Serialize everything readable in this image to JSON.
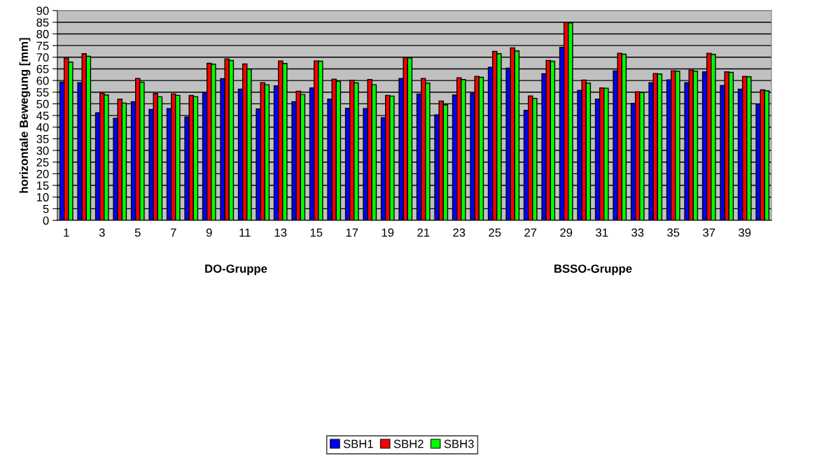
{
  "chart_data": {
    "type": "bar",
    "ylabel": "horizontale Bewegung [mm]",
    "categories": [
      "1",
      null,
      "3",
      null,
      "5",
      null,
      "7",
      null,
      "9",
      null,
      "11",
      null,
      "13",
      null,
      "15",
      null,
      "17",
      null,
      "19",
      null,
      "21",
      null,
      "23",
      null,
      "25",
      null,
      "27",
      null,
      "29",
      null,
      "31",
      null,
      "33",
      null,
      "35",
      null,
      "37",
      null,
      "39",
      null
    ],
    "series": [
      {
        "name": "SBH1",
        "color": "#0000ff",
        "values": [
          59.4,
          59.1,
          46.2,
          43.8,
          50.9,
          47.6,
          48.0,
          44.4,
          55.0,
          60.8,
          56.3,
          47.8,
          57.7,
          50.9,
          56.8,
          52.0,
          48.1,
          48.0,
          44.1,
          60.9,
          54.2,
          45.3,
          53.8,
          54.5,
          65.7,
          65.3,
          47.2,
          62.9,
          74.2,
          55.8,
          52.0,
          64.2,
          50.2,
          59.1,
          60.3,
          59.1,
          63.7,
          57.9,
          56.3,
          49.9
        ]
      },
      {
        "name": "SBH2",
        "color": "#ff0000",
        "values": [
          69.6,
          71.5,
          54.5,
          52.0,
          60.9,
          54.4,
          54.3,
          53.6,
          67.4,
          69.3,
          67.1,
          59.1,
          68.4,
          55.4,
          68.4,
          60.6,
          60.1,
          60.4,
          53.6,
          69.9,
          60.9,
          51.2,
          61.2,
          61.8,
          72.5,
          74.0,
          53.4,
          68.6,
          85.0,
          60.2,
          56.8,
          71.7,
          55.2,
          63.0,
          64.2,
          64.5,
          71.7,
          63.7,
          61.8,
          56.0
        ]
      },
      {
        "name": "SBH3",
        "color": "#00ff00",
        "values": [
          67.9,
          70.4,
          53.8,
          50.3,
          59.3,
          53.0,
          53.6,
          53.1,
          67.0,
          68.6,
          64.9,
          58.2,
          67.3,
          54.0,
          68.3,
          59.7,
          59.0,
          58.2,
          53.3,
          69.7,
          58.9,
          49.6,
          60.4,
          61.4,
          71.5,
          72.7,
          52.3,
          68.3,
          84.7,
          58.9,
          56.7,
          71.3,
          54.8,
          62.8,
          64.0,
          64.0,
          71.2,
          63.5,
          61.6,
          55.6
        ]
      }
    ],
    "ylim": [
      0,
      90
    ],
    "yticks": [
      0,
      5,
      10,
      15,
      20,
      25,
      30,
      35,
      40,
      45,
      50,
      55,
      60,
      65,
      70,
      75,
      80,
      85,
      90
    ],
    "grid": "y",
    "legend": "bottom",
    "annotations": [
      "DO-Gruppe",
      "BSSO-Gruppe"
    ]
  }
}
